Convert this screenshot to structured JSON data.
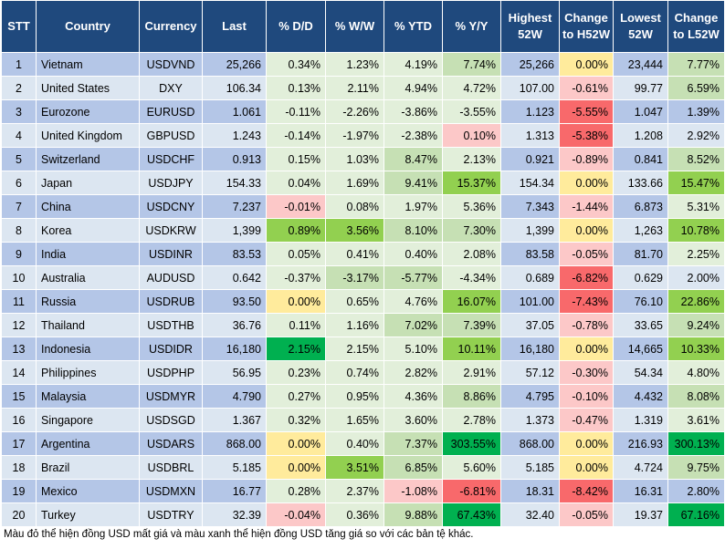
{
  "colors": {
    "header_bg": "#1f497d",
    "odd_row": "#b4c6e7",
    "even_row": "#dce6f1",
    "green_dark": "#00b050",
    "green_mid": "#92d050",
    "green_light": "#c6e0b4",
    "green_pale": "#e2efda",
    "red_dark": "#f8696b",
    "red_mid": "#fb9a9b",
    "red_light": "#fcc8c8",
    "yellow_pale": "#ffeb9c"
  },
  "headers": [
    "STT",
    "Country",
    "Currency",
    "Last",
    "% D/D",
    "% W/W",
    "% YTD",
    "% Y/Y",
    "Highest 52W",
    "Change to H52W",
    "Lowest 52W",
    "Change to L52W"
  ],
  "rows": [
    {
      "stt": "1",
      "country": "Vietnam",
      "currency": "USDVND",
      "last": "25,266",
      "dd": "0.34%",
      "ww": "1.23%",
      "ytd": "4.19%",
      "yy": "7.74%",
      "high": "25,266",
      "chh": "0.00%",
      "low": "23,444",
      "chl": "7.77%",
      "bg": {
        "dd": "#e2efda",
        "ww": "#e2efda",
        "ytd": "#e2efda",
        "yy": "#c6e0b4",
        "chh": "#ffeb9c",
        "chl": "#c6e0b4"
      }
    },
    {
      "stt": "2",
      "country": "United States",
      "currency": "DXY",
      "last": "106.34",
      "dd": "0.13%",
      "ww": "2.11%",
      "ytd": "4.94%",
      "yy": "4.72%",
      "high": "107.00",
      "chh": "-0.61%",
      "low": "99.77",
      "chl": "6.59%",
      "bg": {
        "dd": "#e2efda",
        "ww": "#e2efda",
        "ytd": "#e2efda",
        "yy": "#e2efda",
        "chh": "#fcc8c8",
        "chl": "#c6e0b4"
      }
    },
    {
      "stt": "3",
      "country": "Eurozone",
      "currency": "EURUSD",
      "last": "1.061",
      "dd": "-0.11%",
      "ww": "-2.26%",
      "ytd": "-3.86%",
      "yy": "-3.55%",
      "high": "1.123",
      "chh": "-5.55%",
      "low": "1.047",
      "chl": "1.39%",
      "bg": {
        "dd": "#e2efda",
        "ww": "#e2efda",
        "ytd": "#e2efda",
        "yy": "#e2efda",
        "chh": "#f8696b",
        "chl": ""
      }
    },
    {
      "stt": "4",
      "country": "United Kingdom",
      "currency": "GBPUSD",
      "last": "1.243",
      "dd": "-0.14%",
      "ww": "-1.97%",
      "ytd": "-2.38%",
      "yy": "0.10%",
      "high": "1.313",
      "chh": "-5.38%",
      "low": "1.208",
      "chl": "2.92%",
      "bg": {
        "dd": "#e2efda",
        "ww": "#e2efda",
        "ytd": "#e2efda",
        "yy": "#fcc8c8",
        "chh": "#f8696b",
        "chl": ""
      }
    },
    {
      "stt": "5",
      "country": "Switzerland",
      "currency": "USDCHF",
      "last": "0.913",
      "dd": "0.15%",
      "ww": "1.03%",
      "ytd": "8.47%",
      "yy": "2.13%",
      "high": "0.921",
      "chh": "-0.89%",
      "low": "0.841",
      "chl": "8.52%",
      "bg": {
        "dd": "#e2efda",
        "ww": "#e2efda",
        "ytd": "#c6e0b4",
        "yy": "#e2efda",
        "chh": "#fcc8c8",
        "chl": "#c6e0b4"
      }
    },
    {
      "stt": "6",
      "country": "Japan",
      "currency": "USDJPY",
      "last": "154.33",
      "dd": "0.04%",
      "ww": "1.69%",
      "ytd": "9.41%",
      "yy": "15.37%",
      "high": "154.34",
      "chh": "0.00%",
      "low": "133.66",
      "chl": "15.47%",
      "bg": {
        "dd": "#e2efda",
        "ww": "#e2efda",
        "ytd": "#c6e0b4",
        "yy": "#92d050",
        "chh": "#ffeb9c",
        "chl": "#92d050"
      }
    },
    {
      "stt": "7",
      "country": "China",
      "currency": "USDCNY",
      "last": "7.237",
      "dd": "-0.01%",
      "ww": "0.08%",
      "ytd": "1.97%",
      "yy": "5.36%",
      "high": "7.343",
      "chh": "-1.44%",
      "low": "6.873",
      "chl": "5.31%",
      "bg": {
        "dd": "#fcc8c8",
        "ww": "#e2efda",
        "ytd": "#e2efda",
        "yy": "#e2efda",
        "chh": "#fcc8c8",
        "chl": "#e2efda"
      }
    },
    {
      "stt": "8",
      "country": "Korea",
      "currency": "USDKRW",
      "last": "1,399",
      "dd": "0.89%",
      "ww": "3.56%",
      "ytd": "8.10%",
      "yy": "7.30%",
      "high": "1,399",
      "chh": "0.00%",
      "low": "1,263",
      "chl": "10.78%",
      "bg": {
        "dd": "#92d050",
        "ww": "#92d050",
        "ytd": "#c6e0b4",
        "yy": "#c6e0b4",
        "chh": "#ffeb9c",
        "chl": "#92d050"
      }
    },
    {
      "stt": "9",
      "country": "India",
      "currency": "USDINR",
      "last": "83.53",
      "dd": "0.05%",
      "ww": "0.41%",
      "ytd": "0.40%",
      "yy": "2.08%",
      "high": "83.58",
      "chh": "-0.05%",
      "low": "81.70",
      "chl": "2.25%",
      "bg": {
        "dd": "#e2efda",
        "ww": "#e2efda",
        "ytd": "#e2efda",
        "yy": "#e2efda",
        "chh": "#fcc8c8",
        "chl": "#e2efda"
      }
    },
    {
      "stt": "10",
      "country": "Australia",
      "currency": "AUDUSD",
      "last": "0.642",
      "dd": "-0.37%",
      "ww": "-3.17%",
      "ytd": "-5.77%",
      "yy": "-4.34%",
      "high": "0.689",
      "chh": "-6.82%",
      "low": "0.629",
      "chl": "2.00%",
      "bg": {
        "dd": "#e2efda",
        "ww": "#c6e0b4",
        "ytd": "#c6e0b4",
        "yy": "#e2efda",
        "chh": "#f8696b",
        "chl": ""
      }
    },
    {
      "stt": "11",
      "country": "Russia",
      "currency": "USDRUB",
      "last": "93.50",
      "dd": "0.00%",
      "ww": "0.65%",
      "ytd": "4.76%",
      "yy": "16.07%",
      "high": "101.00",
      "chh": "-7.43%",
      "low": "76.10",
      "chl": "22.86%",
      "bg": {
        "dd": "#ffeb9c",
        "ww": "#e2efda",
        "ytd": "#e2efda",
        "yy": "#92d050",
        "chh": "#f8696b",
        "chl": "#92d050"
      }
    },
    {
      "stt": "12",
      "country": "Thailand",
      "currency": "USDTHB",
      "last": "36.76",
      "dd": "0.11%",
      "ww": "1.16%",
      "ytd": "7.02%",
      "yy": "7.39%",
      "high": "37.05",
      "chh": "-0.78%",
      "low": "33.65",
      "chl": "9.24%",
      "bg": {
        "dd": "#e2efda",
        "ww": "#e2efda",
        "ytd": "#c6e0b4",
        "yy": "#c6e0b4",
        "chh": "#fcc8c8",
        "chl": "#c6e0b4"
      }
    },
    {
      "stt": "13",
      "country": "Indonesia",
      "currency": "USDIDR",
      "last": "16,180",
      "dd": "2.15%",
      "ww": "2.15%",
      "ytd": "5.10%",
      "yy": "10.11%",
      "high": "16,180",
      "chh": "0.00%",
      "low": "14,665",
      "chl": "10.33%",
      "bg": {
        "dd": "#00b050",
        "ww": "#e2efda",
        "ytd": "#e2efda",
        "yy": "#92d050",
        "chh": "#ffeb9c",
        "chl": "#92d050"
      }
    },
    {
      "stt": "14",
      "country": "Philippines",
      "currency": "USDPHP",
      "last": "56.95",
      "dd": "0.23%",
      "ww": "0.74%",
      "ytd": "2.82%",
      "yy": "2.91%",
      "high": "57.12",
      "chh": "-0.30%",
      "low": "54.34",
      "chl": "4.80%",
      "bg": {
        "dd": "#e2efda",
        "ww": "#e2efda",
        "ytd": "#e2efda",
        "yy": "#e2efda",
        "chh": "#fcc8c8",
        "chl": "#e2efda"
      }
    },
    {
      "stt": "15",
      "country": "Malaysia",
      "currency": "USDMYR",
      "last": "4.790",
      "dd": "0.27%",
      "ww": "0.95%",
      "ytd": "4.36%",
      "yy": "8.86%",
      "high": "4.795",
      "chh": "-0.10%",
      "low": "4.432",
      "chl": "8.08%",
      "bg": {
        "dd": "#e2efda",
        "ww": "#e2efda",
        "ytd": "#e2efda",
        "yy": "#c6e0b4",
        "chh": "#fcc8c8",
        "chl": "#c6e0b4"
      }
    },
    {
      "stt": "16",
      "country": "Singapore",
      "currency": "USDSGD",
      "last": "1.367",
      "dd": "0.32%",
      "ww": "1.65%",
      "ytd": "3.60%",
      "yy": "2.78%",
      "high": "1.373",
      "chh": "-0.47%",
      "low": "1.319",
      "chl": "3.61%",
      "bg": {
        "dd": "#e2efda",
        "ww": "#e2efda",
        "ytd": "#e2efda",
        "yy": "#e2efda",
        "chh": "#fcc8c8",
        "chl": "#e2efda"
      }
    },
    {
      "stt": "17",
      "country": "Argentina",
      "currency": "USDARS",
      "last": "868.00",
      "dd": "0.00%",
      "ww": "0.40%",
      "ytd": "7.37%",
      "yy": "303.55%",
      "high": "868.00",
      "chh": "0.00%",
      "low": "216.93",
      "chl": "300.13%",
      "bg": {
        "dd": "#ffeb9c",
        "ww": "#e2efda",
        "ytd": "#c6e0b4",
        "yy": "#00b050",
        "chh": "#ffeb9c",
        "chl": "#00b050"
      }
    },
    {
      "stt": "18",
      "country": "Brazil",
      "currency": "USDBRL",
      "last": "5.185",
      "dd": "0.00%",
      "ww": "3.51%",
      "ytd": "6.85%",
      "yy": "5.60%",
      "high": "5.185",
      "chh": "0.00%",
      "low": "4.724",
      "chl": "9.75%",
      "bg": {
        "dd": "#ffeb9c",
        "ww": "#92d050",
        "ytd": "#c6e0b4",
        "yy": "#e2efda",
        "chh": "#ffeb9c",
        "chl": "#c6e0b4"
      }
    },
    {
      "stt": "19",
      "country": "Mexico",
      "currency": "USDMXN",
      "last": "16.77",
      "dd": "0.28%",
      "ww": "2.37%",
      "ytd": "-1.08%",
      "yy": "-6.81%",
      "high": "18.31",
      "chh": "-8.42%",
      "low": "16.31",
      "chl": "2.80%",
      "bg": {
        "dd": "#e2efda",
        "ww": "#e2efda",
        "ytd": "#fcc8c8",
        "yy": "#f8696b",
        "chh": "#f8696b",
        "chl": ""
      }
    },
    {
      "stt": "20",
      "country": "Turkey",
      "currency": "USDTRY",
      "last": "32.39",
      "dd": "-0.04%",
      "ww": "0.36%",
      "ytd": "9.88%",
      "yy": "67.43%",
      "high": "32.40",
      "chh": "-0.05%",
      "low": "19.37",
      "chl": "67.16%",
      "bg": {
        "dd": "#fcc8c8",
        "ww": "#e2efda",
        "ytd": "#c6e0b4",
        "yy": "#00b050",
        "chh": "#fcc8c8",
        "chl": "#00b050"
      }
    }
  ],
  "footnote": "Màu đỏ thể hiện đồng USD mất giá và màu xanh thể hiện đồng USD tăng giá so với các bản tệ khác."
}
